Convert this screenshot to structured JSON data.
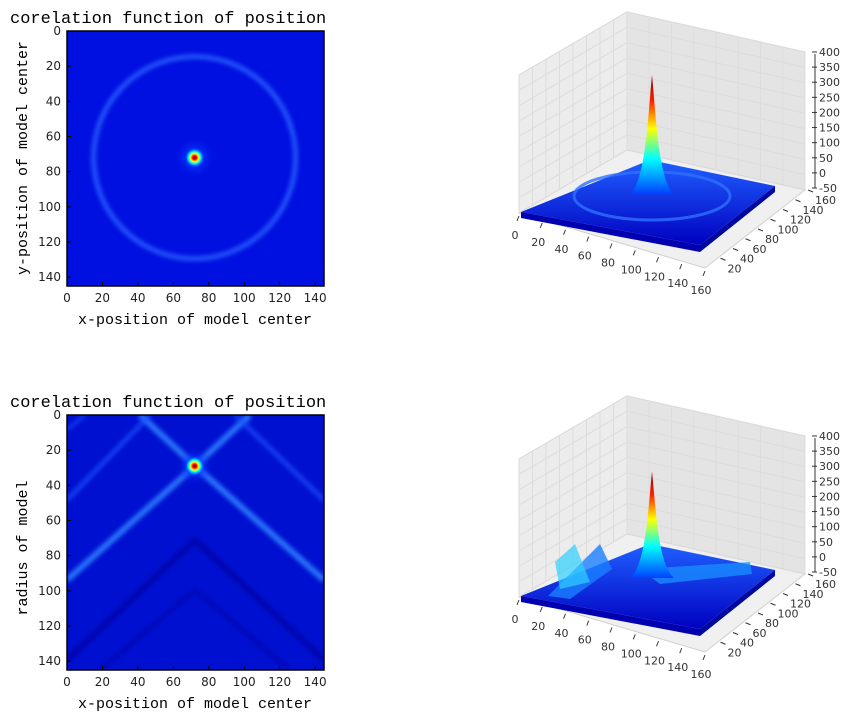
{
  "chart_data": [
    {
      "type": "heatmap",
      "title": "corelation function of position",
      "xlabel": "x-position of model  center",
      "ylabel": "y-position of model  center",
      "xlim": [
        0,
        145
      ],
      "ylim": [
        0,
        145
      ],
      "xticks": [
        0,
        20,
        40,
        60,
        80,
        100,
        120,
        140
      ],
      "yticks": [
        0,
        20,
        40,
        60,
        80,
        100,
        120,
        140
      ],
      "colormap": "jet",
      "peak": {
        "x": 72,
        "y": 72
      },
      "ring": {
        "cx": 72,
        "cy": 72,
        "r": 57
      },
      "grid": false
    },
    {
      "type": "surface",
      "title": "",
      "xticks": [
        0,
        20,
        40,
        60,
        80,
        100,
        120,
        140,
        160
      ],
      "yticks": [
        0,
        20,
        40,
        60,
        80,
        100,
        120,
        140,
        160
      ],
      "zticks": [
        -50,
        0,
        50,
        100,
        150,
        200,
        250,
        300,
        350,
        400
      ],
      "zlim": [
        -50,
        400
      ],
      "peak_value": 370,
      "colormap": "jet",
      "grid": true
    },
    {
      "type": "heatmap",
      "title": "corelation function of position",
      "xlabel": "x-position of model  center",
      "ylabel": "radius of model",
      "xlim": [
        0,
        145
      ],
      "ylim": [
        0,
        145
      ],
      "xticks": [
        0,
        20,
        40,
        60,
        80,
        100,
        120,
        140
      ],
      "yticks": [
        0,
        20,
        40,
        60,
        80,
        100,
        120,
        140
      ],
      "colormap": "jet",
      "peak": {
        "x": 72,
        "y": 29
      },
      "grid": false
    },
    {
      "type": "surface",
      "title": "",
      "xticks": [
        0,
        20,
        40,
        60,
        80,
        100,
        120,
        140,
        160
      ],
      "yticks": [
        0,
        20,
        40,
        60,
        80,
        100,
        120,
        140,
        160
      ],
      "zticks": [
        -50,
        0,
        50,
        100,
        150,
        200,
        250,
        300,
        350,
        400
      ],
      "zlim": [
        -50,
        400
      ],
      "peak_value": 330,
      "colormap": "jet",
      "grid": true
    }
  ],
  "colors": {
    "jet_low": "#00008f",
    "jet_blue": "#0000ff",
    "jet_cyan": "#00ffff",
    "jet_yellow": "#ffff00",
    "jet_red": "#ff0000",
    "jet_high": "#800000",
    "pane_fill": "#f2f2f2",
    "grid_line": "#e2e2e2"
  }
}
